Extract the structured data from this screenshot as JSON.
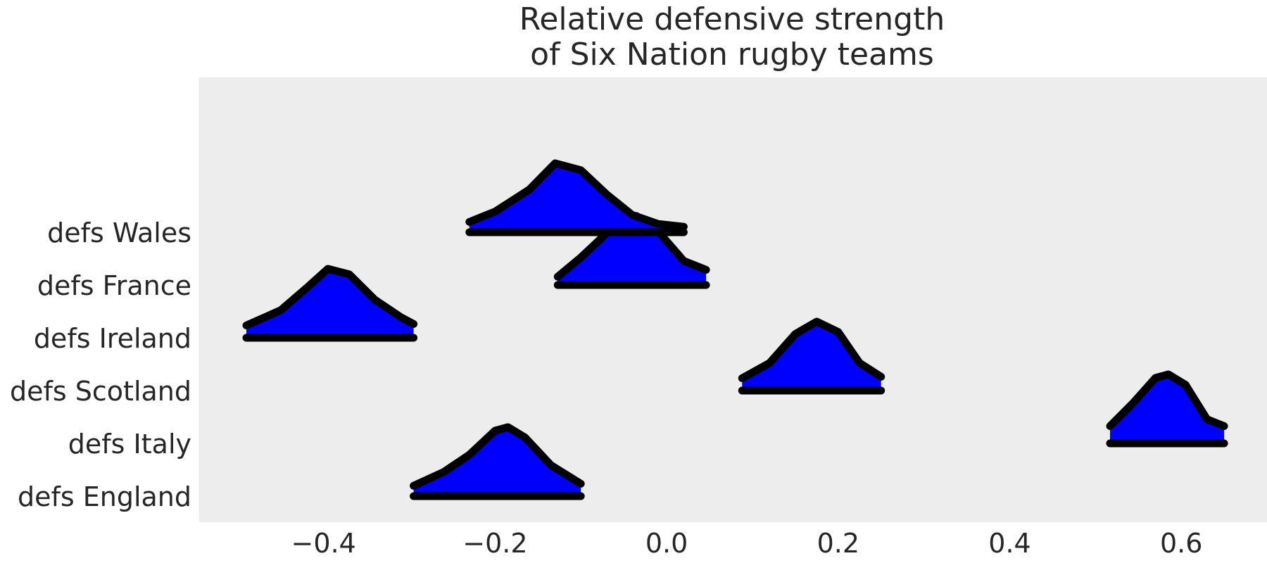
{
  "chart_data": {
    "type": "area",
    "title_lines": [
      "Relative defensive strength",
      "of Six Nation rugby teams"
    ],
    "xlim": [
      -0.545,
      0.7
    ],
    "xticks": [
      -0.4,
      -0.2,
      0.0,
      0.2,
      0.4,
      0.6
    ],
    "xtick_labels": [
      "−0.4",
      "−0.2",
      "0.0",
      "0.2",
      "0.4",
      "0.6"
    ],
    "grid": false,
    "series": [
      {
        "name": "defs Wales",
        "range": [
          -0.23,
          0.02
        ],
        "curve": [
          [
            -0.23,
            0.15
          ],
          [
            -0.2,
            0.3
          ],
          [
            -0.16,
            0.62
          ],
          [
            -0.13,
            1.0
          ],
          [
            -0.1,
            0.9
          ],
          [
            -0.07,
            0.55
          ],
          [
            -0.04,
            0.25
          ],
          [
            -0.01,
            0.12
          ],
          [
            0.02,
            0.08
          ]
        ]
      },
      {
        "name": "defs France",
        "range": [
          -0.127,
          0.046
        ],
        "curve": [
          [
            -0.127,
            0.12
          ],
          [
            -0.1,
            0.4
          ],
          [
            -0.07,
            0.75
          ],
          [
            -0.035,
            1.0
          ],
          [
            -0.01,
            0.78
          ],
          [
            0.02,
            0.35
          ],
          [
            0.046,
            0.22
          ]
        ]
      },
      {
        "name": "defs Ireland",
        "range": [
          -0.49,
          -0.295
        ],
        "curve": [
          [
            -0.49,
            0.18
          ],
          [
            -0.45,
            0.4
          ],
          [
            -0.42,
            0.72
          ],
          [
            -0.395,
            1.0
          ],
          [
            -0.37,
            0.92
          ],
          [
            -0.34,
            0.55
          ],
          [
            -0.31,
            0.3
          ],
          [
            -0.295,
            0.2
          ]
        ]
      },
      {
        "name": "defs Scotland",
        "range": [
          0.088,
          0.25
        ],
        "curve": [
          [
            0.088,
            0.18
          ],
          [
            0.12,
            0.4
          ],
          [
            0.15,
            0.82
          ],
          [
            0.175,
            1.0
          ],
          [
            0.2,
            0.85
          ],
          [
            0.225,
            0.4
          ],
          [
            0.25,
            0.2
          ]
        ]
      },
      {
        "name": "defs Italy",
        "range": [
          0.517,
          0.65
        ],
        "curve": [
          [
            0.517,
            0.25
          ],
          [
            0.545,
            0.6
          ],
          [
            0.57,
            0.95
          ],
          [
            0.585,
            1.0
          ],
          [
            0.605,
            0.85
          ],
          [
            0.63,
            0.35
          ],
          [
            0.65,
            0.25
          ]
        ]
      },
      {
        "name": "defs England",
        "range": [
          -0.295,
          -0.1
        ],
        "curve": [
          [
            -0.295,
            0.15
          ],
          [
            -0.26,
            0.35
          ],
          [
            -0.23,
            0.6
          ],
          [
            -0.2,
            0.95
          ],
          [
            -0.185,
            1.0
          ],
          [
            -0.165,
            0.85
          ],
          [
            -0.135,
            0.45
          ],
          [
            -0.1,
            0.18
          ]
        ]
      }
    ]
  }
}
